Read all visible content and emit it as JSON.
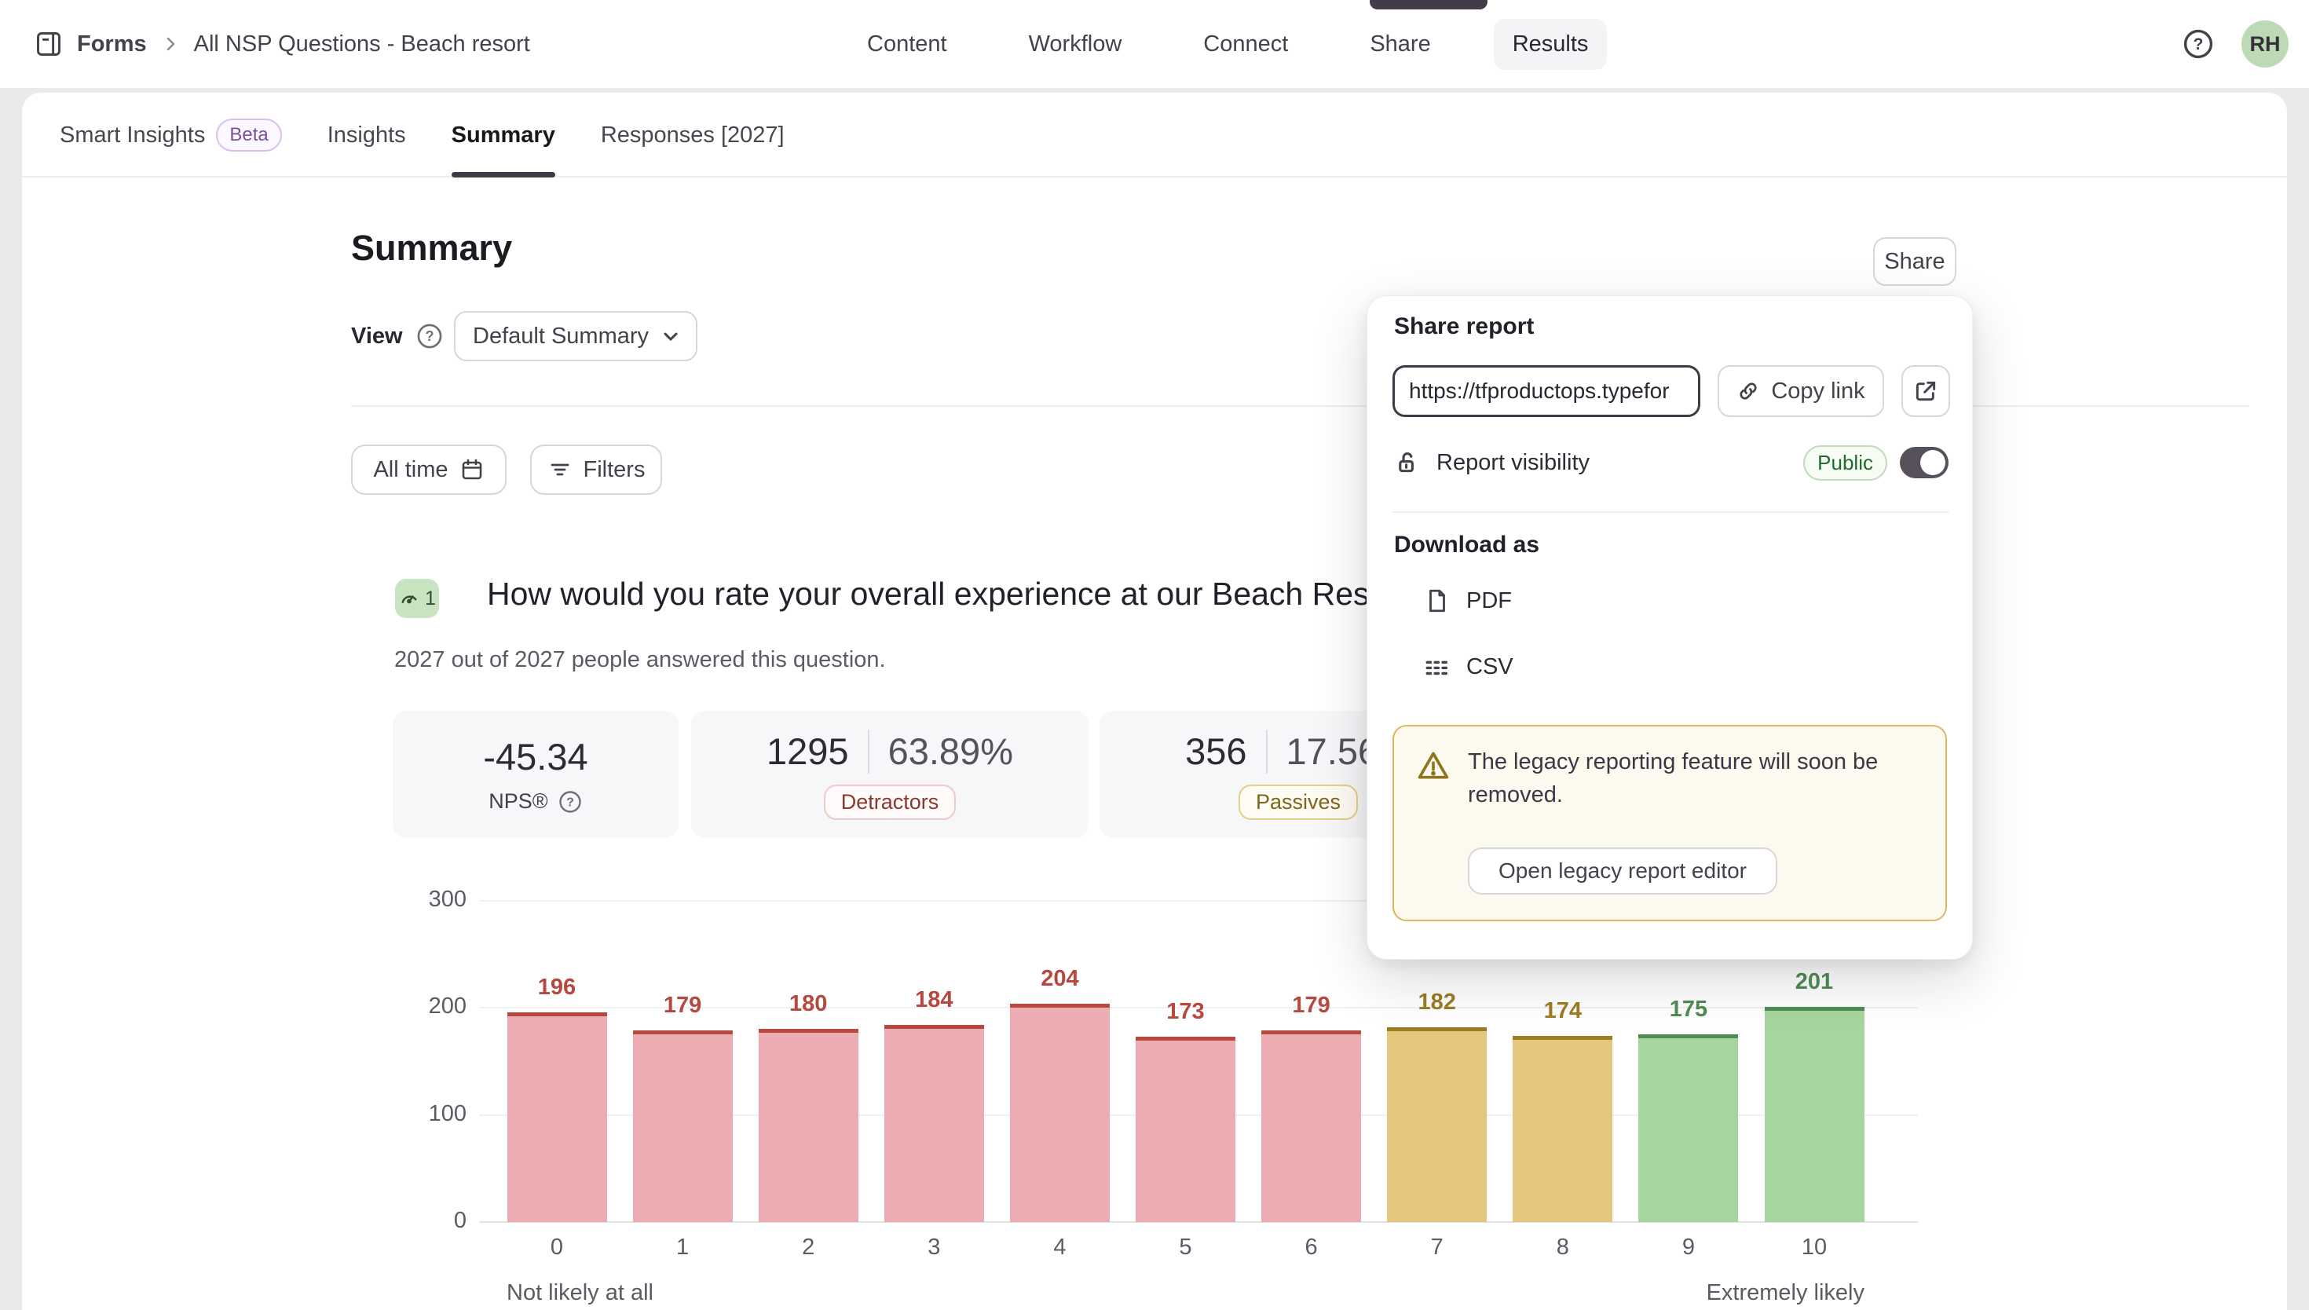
{
  "header": {
    "breadcrumb_root": "Forms",
    "breadcrumb_current": "All NSP Questions - Beach resort",
    "nav": [
      {
        "label": "Content",
        "active": false
      },
      {
        "label": "Workflow",
        "active": false
      },
      {
        "label": "Connect",
        "active": false
      },
      {
        "label": "Share",
        "active": false
      },
      {
        "label": "Results",
        "active": true
      }
    ],
    "avatar_initials": "RH"
  },
  "tabs": [
    {
      "label": "Smart Insights",
      "badge": "Beta",
      "active": false
    },
    {
      "label": "Insights",
      "active": false
    },
    {
      "label": "Summary",
      "active": true
    },
    {
      "label": "Responses [2027]",
      "active": false
    }
  ],
  "toolbar": {
    "page_title": "Summary",
    "share_label": "Share",
    "view_label": "View",
    "view_value": "Default Summary",
    "time_filter_label": "All time",
    "filters_label": "Filters"
  },
  "question": {
    "number": "1",
    "title": "How would you rate your overall experience at our Beach Res",
    "answered_text": "2027 out of 2027 people answered this question."
  },
  "stats": {
    "nps_value": "-45.34",
    "nps_label": "NPS®",
    "detractors_count": "1295",
    "detractors_percent": "63.89%",
    "detractors_label": "Detractors",
    "passives_count": "356",
    "passives_percent": "17.56%",
    "passives_label": "Passives"
  },
  "share_popover": {
    "title": "Share report",
    "url": "https://tfproductops.typefor",
    "copy_link": "Copy link",
    "visibility_label": "Report visibility",
    "visibility_value": "Public",
    "visibility_on": true,
    "download_label": "Download as",
    "downloads": [
      "PDF",
      "CSV"
    ],
    "warning": "The legacy reporting feature will soon be removed.",
    "warning_button": "Open legacy report editor"
  },
  "chart_data": {
    "type": "bar",
    "title": "",
    "categories": [
      "0",
      "1",
      "2",
      "3",
      "4",
      "5",
      "6",
      "7",
      "8",
      "9",
      "10"
    ],
    "values": [
      196,
      179,
      180,
      184,
      204,
      173,
      179,
      182,
      174,
      175,
      201
    ],
    "groups": [
      "detractor",
      "detractor",
      "detractor",
      "detractor",
      "detractor",
      "detractor",
      "detractor",
      "passive",
      "passive",
      "promoter",
      "promoter"
    ],
    "yticks": [
      0,
      100,
      200,
      300
    ],
    "ylim": [
      0,
      300
    ],
    "grid": true,
    "legend": "none",
    "xlabel_left": "Not likely at all",
    "xlabel_right": "Extremely likely",
    "colors": {
      "detractor": {
        "fill": "#ecacb2",
        "edge": "#b5483f"
      },
      "passive": {
        "fill": "#e4c77d",
        "edge": "#9b7d22"
      },
      "promoter": {
        "fill": "#a7d59f",
        "edge": "#4f8c54"
      }
    }
  }
}
